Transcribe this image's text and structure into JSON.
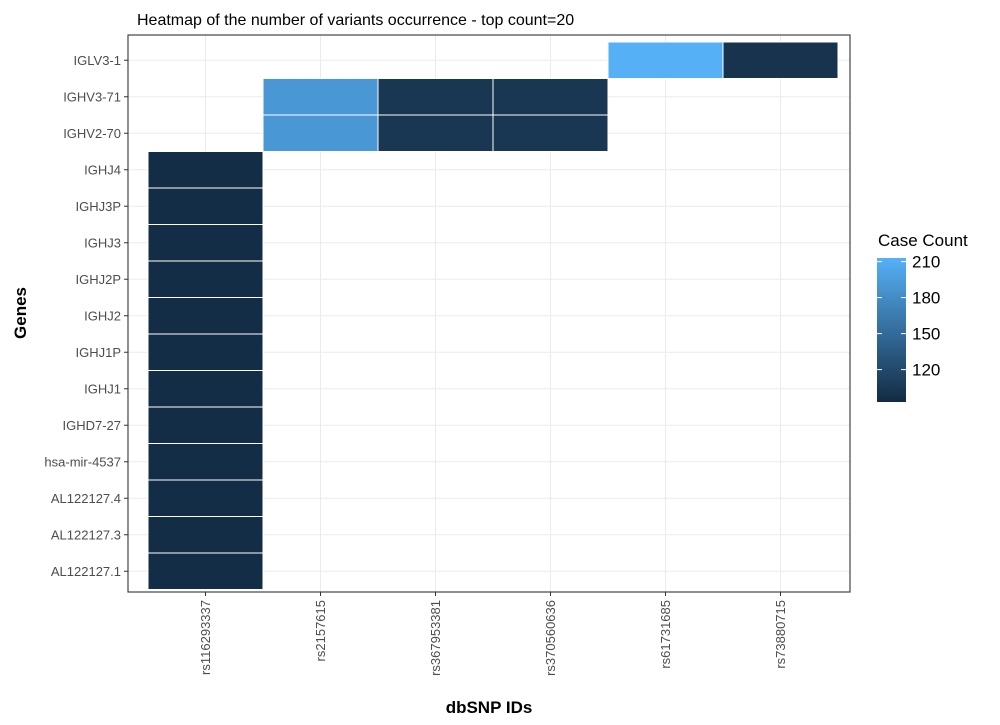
{
  "chart_data": {
    "type": "heatmap",
    "title": "Heatmap of the number of variants occurrence - top count=20",
    "xlabel": "dbSNP IDs",
    "ylabel": "Genes",
    "x_categories": [
      "rs116293337",
      "rs2157615",
      "rs367953381",
      "rs370560636",
      "rs61731685",
      "rs73880715"
    ],
    "y_categories": [
      "AL122127.1",
      "AL122127.3",
      "AL122127.4",
      "hsa-mir-4537",
      "IGHD7-27",
      "IGHJ1",
      "IGHJ1P",
      "IGHJ2",
      "IGHJ2P",
      "IGHJ3",
      "IGHJ3P",
      "IGHJ4",
      "IGHV2-70",
      "IGHV3-71",
      "IGLV3-1"
    ],
    "cells": [
      {
        "x": "rs116293337",
        "y": "AL122127.1",
        "value": 95
      },
      {
        "x": "rs116293337",
        "y": "AL122127.3",
        "value": 95
      },
      {
        "x": "rs116293337",
        "y": "AL122127.4",
        "value": 95
      },
      {
        "x": "rs116293337",
        "y": "hsa-mir-4537",
        "value": 95
      },
      {
        "x": "rs116293337",
        "y": "IGHD7-27",
        "value": 95
      },
      {
        "x": "rs116293337",
        "y": "IGHJ1",
        "value": 95
      },
      {
        "x": "rs116293337",
        "y": "IGHJ1P",
        "value": 95
      },
      {
        "x": "rs116293337",
        "y": "IGHJ2",
        "value": 95
      },
      {
        "x": "rs116293337",
        "y": "IGHJ2P",
        "value": 95
      },
      {
        "x": "rs116293337",
        "y": "IGHJ3",
        "value": 95
      },
      {
        "x": "rs116293337",
        "y": "IGHJ3P",
        "value": 95
      },
      {
        "x": "rs116293337",
        "y": "IGHJ4",
        "value": 95
      },
      {
        "x": "rs2157615",
        "y": "IGHV2-70",
        "value": 190
      },
      {
        "x": "rs2157615",
        "y": "IGHV3-71",
        "value": 190
      },
      {
        "x": "rs367953381",
        "y": "IGHV2-70",
        "value": 103
      },
      {
        "x": "rs367953381",
        "y": "IGHV3-71",
        "value": 103
      },
      {
        "x": "rs370560636",
        "y": "IGHV2-70",
        "value": 103
      },
      {
        "x": "rs370560636",
        "y": "IGHV3-71",
        "value": 103
      },
      {
        "x": "rs61731685",
        "y": "IGLV3-1",
        "value": 212
      },
      {
        "x": "rs73880715",
        "y": "IGLV3-1",
        "value": 100
      }
    ],
    "legend": {
      "title": "Case Count",
      "position": "right",
      "ticks": [
        120,
        150,
        180,
        210
      ],
      "range": [
        93,
        213
      ],
      "low_color": "#132B43",
      "high_color": "#56B1F7"
    },
    "grid": true,
    "background": "#ffffff",
    "gridline_color": "#ebebeb",
    "tile_border_color": "#ffffff"
  }
}
